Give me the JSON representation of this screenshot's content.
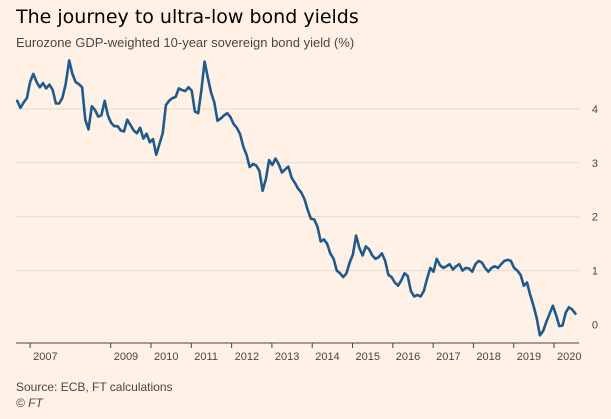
{
  "title": "The journey to ultra-low bond yields",
  "subtitle": "Eurozone GDP-weighted 10-year sovereign bond yield (%)",
  "source": "Source: ECB, FT calculations",
  "credit": "© FT",
  "colors": {
    "background": "#fff1e5",
    "line": "#1f5a8f",
    "grid": "#e5d9ce",
    "axis": "#4a4642",
    "tick_text": "#4a4642"
  },
  "chart_data": {
    "type": "line",
    "title": "The journey to ultra-low bond yields",
    "subtitle": "Eurozone GDP-weighted 10-year sovereign bond yield (%)",
    "xlabel": "",
    "ylabel": "",
    "xlim": [
      2006.65,
      2020.62
    ],
    "ylim": [
      -0.25,
      5.0
    ],
    "grid": true,
    "legend": "none",
    "x_ticks": [
      2007,
      2009,
      2010,
      2011,
      2012,
      2013,
      2014,
      2015,
      2016,
      2017,
      2018,
      2019,
      2020
    ],
    "x_tick_labels": [
      "2007",
      "2009",
      "2010",
      "2011",
      "2012",
      "2013",
      "2014",
      "2015",
      "2016",
      "2017",
      "2018",
      "2019",
      "2020"
    ],
    "y_ticks": [
      0,
      1,
      2,
      3,
      4
    ],
    "y_tick_labels": [
      "0",
      "1",
      "2",
      "3",
      "4"
    ],
    "series": [
      {
        "values": [
          [
            2006.68,
            4.15
          ],
          [
            2006.76,
            4.02
          ],
          [
            2006.84,
            4.12
          ],
          [
            2006.92,
            4.2
          ],
          [
            2007.0,
            4.5
          ],
          [
            2007.08,
            4.65
          ],
          [
            2007.16,
            4.5
          ],
          [
            2007.24,
            4.4
          ],
          [
            2007.32,
            4.48
          ],
          [
            2007.4,
            4.38
          ],
          [
            2007.48,
            4.45
          ],
          [
            2007.56,
            4.35
          ],
          [
            2007.64,
            4.1
          ],
          [
            2007.72,
            4.1
          ],
          [
            2007.8,
            4.2
          ],
          [
            2007.88,
            4.45
          ],
          [
            2007.97,
            4.9
          ],
          [
            2008.05,
            4.65
          ],
          [
            2008.13,
            4.5
          ],
          [
            2008.21,
            4.46
          ],
          [
            2008.29,
            4.4
          ],
          [
            2008.37,
            3.8
          ],
          [
            2008.45,
            3.62
          ],
          [
            2008.53,
            4.05
          ],
          [
            2008.61,
            3.98
          ],
          [
            2008.69,
            3.86
          ],
          [
            2008.77,
            3.88
          ],
          [
            2008.85,
            4.15
          ],
          [
            2008.93,
            3.88
          ],
          [
            2009.01,
            3.74
          ],
          [
            2009.09,
            3.68
          ],
          [
            2009.17,
            3.68
          ],
          [
            2009.25,
            3.6
          ],
          [
            2009.33,
            3.58
          ],
          [
            2009.41,
            3.8
          ],
          [
            2009.49,
            3.7
          ],
          [
            2009.57,
            3.6
          ],
          [
            2009.65,
            3.55
          ],
          [
            2009.73,
            3.65
          ],
          [
            2009.81,
            3.45
          ],
          [
            2009.89,
            3.54
          ],
          [
            2009.97,
            3.38
          ],
          [
            2010.05,
            3.44
          ],
          [
            2010.13,
            3.15
          ],
          [
            2010.21,
            3.35
          ],
          [
            2010.29,
            3.55
          ],
          [
            2010.37,
            4.07
          ],
          [
            2010.45,
            4.15
          ],
          [
            2010.53,
            4.2
          ],
          [
            2010.61,
            4.22
          ],
          [
            2010.69,
            4.38
          ],
          [
            2010.77,
            4.35
          ],
          [
            2010.85,
            4.33
          ],
          [
            2010.93,
            4.4
          ],
          [
            2011.01,
            4.34
          ],
          [
            2011.09,
            3.95
          ],
          [
            2011.17,
            3.92
          ],
          [
            2011.25,
            4.35
          ],
          [
            2011.33,
            4.88
          ],
          [
            2011.41,
            4.58
          ],
          [
            2011.49,
            4.3
          ],
          [
            2011.57,
            4.12
          ],
          [
            2011.65,
            3.78
          ],
          [
            2011.73,
            3.82
          ],
          [
            2011.81,
            3.88
          ],
          [
            2011.89,
            3.92
          ],
          [
            2011.97,
            3.85
          ],
          [
            2012.05,
            3.72
          ],
          [
            2012.13,
            3.65
          ],
          [
            2012.21,
            3.53
          ],
          [
            2012.29,
            3.3
          ],
          [
            2012.37,
            3.15
          ],
          [
            2012.45,
            2.92
          ],
          [
            2012.53,
            2.98
          ],
          [
            2012.61,
            2.95
          ],
          [
            2012.69,
            2.85
          ],
          [
            2012.77,
            2.48
          ],
          [
            2012.85,
            2.7
          ],
          [
            2012.93,
            3.05
          ],
          [
            2013.01,
            2.96
          ],
          [
            2013.09,
            3.08
          ],
          [
            2013.17,
            2.97
          ],
          [
            2013.25,
            2.82
          ],
          [
            2013.33,
            2.88
          ],
          [
            2013.41,
            2.93
          ],
          [
            2013.49,
            2.72
          ],
          [
            2013.57,
            2.63
          ],
          [
            2013.65,
            2.52
          ],
          [
            2013.73,
            2.45
          ],
          [
            2013.81,
            2.32
          ],
          [
            2013.89,
            2.12
          ],
          [
            2013.97,
            1.96
          ],
          [
            2014.05,
            1.95
          ],
          [
            2014.13,
            1.82
          ],
          [
            2014.21,
            1.54
          ],
          [
            2014.29,
            1.58
          ],
          [
            2014.37,
            1.5
          ],
          [
            2014.45,
            1.32
          ],
          [
            2014.53,
            1.22
          ],
          [
            2014.61,
            1.0
          ],
          [
            2014.69,
            0.95
          ],
          [
            2014.77,
            0.88
          ],
          [
            2014.85,
            0.95
          ],
          [
            2014.93,
            1.15
          ],
          [
            2015.01,
            1.3
          ],
          [
            2015.09,
            1.65
          ],
          [
            2015.17,
            1.42
          ],
          [
            2015.25,
            1.28
          ],
          [
            2015.33,
            1.45
          ],
          [
            2015.41,
            1.4
          ],
          [
            2015.49,
            1.28
          ],
          [
            2015.57,
            1.22
          ],
          [
            2015.65,
            1.25
          ],
          [
            2015.73,
            1.32
          ],
          [
            2015.81,
            1.18
          ],
          [
            2015.89,
            0.92
          ],
          [
            2015.97,
            0.88
          ],
          [
            2016.05,
            0.78
          ],
          [
            2016.13,
            0.72
          ],
          [
            2016.21,
            0.82
          ],
          [
            2016.29,
            0.95
          ],
          [
            2016.37,
            0.9
          ],
          [
            2016.45,
            0.62
          ],
          [
            2016.53,
            0.52
          ],
          [
            2016.61,
            0.55
          ],
          [
            2016.69,
            0.52
          ],
          [
            2016.77,
            0.62
          ],
          [
            2016.85,
            0.85
          ],
          [
            2016.93,
            1.05
          ],
          [
            2017.01,
            0.98
          ],
          [
            2017.09,
            1.22
          ],
          [
            2017.17,
            1.1
          ],
          [
            2017.25,
            1.05
          ],
          [
            2017.33,
            1.08
          ],
          [
            2017.41,
            1.12
          ],
          [
            2017.49,
            1.02
          ],
          [
            2017.57,
            1.08
          ],
          [
            2017.65,
            1.12
          ],
          [
            2017.73,
            1.0
          ],
          [
            2017.81,
            1.05
          ],
          [
            2017.89,
            1.04
          ],
          [
            2017.97,
            0.98
          ],
          [
            2018.05,
            1.12
          ],
          [
            2018.13,
            1.18
          ],
          [
            2018.21,
            1.15
          ],
          [
            2018.29,
            1.05
          ],
          [
            2018.37,
            0.98
          ],
          [
            2018.45,
            1.05
          ],
          [
            2018.53,
            1.08
          ],
          [
            2018.61,
            1.05
          ],
          [
            2018.69,
            1.12
          ],
          [
            2018.77,
            1.18
          ],
          [
            2018.85,
            1.2
          ],
          [
            2018.93,
            1.18
          ],
          [
            2019.01,
            1.05
          ],
          [
            2019.09,
            1.0
          ],
          [
            2019.17,
            0.92
          ],
          [
            2019.25,
            0.72
          ],
          [
            2019.33,
            0.78
          ],
          [
            2019.41,
            0.55
          ],
          [
            2019.49,
            0.35
          ],
          [
            2019.57,
            0.12
          ],
          [
            2019.65,
            -0.2
          ],
          [
            2019.73,
            -0.12
          ],
          [
            2019.81,
            0.05
          ],
          [
            2019.89,
            0.2
          ],
          [
            2019.97,
            0.35
          ],
          [
            2020.05,
            0.18
          ],
          [
            2020.13,
            -0.03
          ],
          [
            2020.21,
            -0.02
          ],
          [
            2020.29,
            0.22
          ],
          [
            2020.37,
            0.32
          ],
          [
            2020.45,
            0.28
          ],
          [
            2020.53,
            0.2
          ]
        ]
      }
    ]
  }
}
